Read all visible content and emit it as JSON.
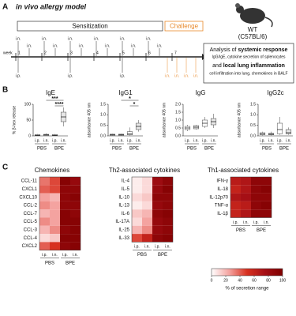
{
  "panel_a": {
    "label": "A",
    "title": "in vivo allergy model",
    "sensitization": "Sensitization",
    "challenge": "Challenge",
    "week_label": "week",
    "weeks": [
      "1",
      "2",
      "3",
      "4",
      "5",
      "6",
      "7"
    ],
    "in_label": "i.n.",
    "ip_label": "i.p.",
    "mouse": "WT",
    "strain": "(C57BL/6)",
    "analysis": [
      "Analysis of ",
      "systemic response",
      "IgG/IgE, cytokine secretion of splenocytes",
      "and ",
      "local lung inflammation",
      "cell infiltration into lung, chemokines in BALF"
    ]
  },
  "panel_b_label": "B",
  "panel_c_label": "C",
  "chart_data": [
    {
      "type": "box",
      "title": "IgE",
      "ylabel": "% β-hex release",
      "categories": [
        "i.p.",
        "i.n.",
        "i.p.",
        "i.n."
      ],
      "groups": [
        "PBS",
        "BPE"
      ],
      "ylim": [
        0,
        100
      ],
      "yticks": [
        0,
        50,
        100
      ],
      "min": [
        0,
        0,
        0,
        30
      ],
      "q1": [
        1,
        1,
        1,
        45
      ],
      "median": [
        2,
        3,
        2,
        60
      ],
      "q3": [
        4,
        5,
        4,
        75
      ],
      "max": [
        6,
        8,
        6,
        90
      ],
      "annotations": [
        {
          "text": "***",
          "from": 1,
          "to": 3
        },
        {
          "text": "****",
          "from": 2,
          "to": 3
        }
      ]
    },
    {
      "type": "box",
      "title": "IgG1",
      "ylabel": "absorbance 405 nm",
      "categories": [
        "i.p.",
        "i.n.",
        "i.p.",
        "i.n."
      ],
      "groups": [
        "PBS",
        "BPE"
      ],
      "ylim": [
        0,
        1.5
      ],
      "yticks": [
        {
          "value": 0,
          "label": "0.0"
        },
        {
          "value": 0.5,
          "label": "0.5"
        },
        {
          "value": 1,
          "label": "1.0"
        },
        {
          "value": 1.5,
          "label": "1.5"
        }
      ],
      "min": [
        0,
        0,
        0.02,
        0.2
      ],
      "q1": [
        0.02,
        0.02,
        0.05,
        0.3
      ],
      "median": [
        0.05,
        0.05,
        0.1,
        0.45
      ],
      "q3": [
        0.08,
        0.08,
        0.2,
        0.6
      ],
      "max": [
        0.1,
        0.1,
        0.4,
        0.75
      ],
      "annotations": [
        {
          "text": "*",
          "from": 1,
          "to": 3
        },
        {
          "text": "*",
          "from": 2,
          "to": 3
        }
      ]
    },
    {
      "type": "box",
      "title": "IgG",
      "ylabel": "absorbance 405 nm",
      "categories": [
        "i.p.",
        "i.n.",
        "i.p.",
        "i.n."
      ],
      "groups": [
        "PBS",
        "BPE"
      ],
      "ylim": [
        0,
        2
      ],
      "yticks": [
        {
          "value": 0,
          "label": "0.0"
        },
        {
          "value": 0.5,
          "label": "0.5"
        },
        {
          "value": 1,
          "label": "1.0"
        },
        {
          "value": 1.5,
          "label": "1.5"
        },
        {
          "value": 2,
          "label": "2.0"
        }
      ],
      "min": [
        0.3,
        0.4,
        0.5,
        0.5
      ],
      "q1": [
        0.4,
        0.45,
        0.6,
        0.7
      ],
      "median": [
        0.5,
        0.55,
        0.8,
        0.9
      ],
      "q3": [
        0.6,
        0.65,
        1,
        1.1
      ],
      "max": [
        0.7,
        0.7,
        1.2,
        1.4
      ],
      "annotations": []
    },
    {
      "type": "box",
      "title": "IgG2c",
      "ylabel": "absorbance 405 nm",
      "categories": [
        "i.p.",
        "i.n.",
        "i.p.",
        "i.n."
      ],
      "groups": [
        "PBS",
        "BPE"
      ],
      "ylim": [
        0,
        1.5
      ],
      "yticks": [
        {
          "value": 0,
          "label": "0.0"
        },
        {
          "value": 0.5,
          "label": "0.5"
        },
        {
          "value": 1,
          "label": "1.0"
        },
        {
          "value": 1.5,
          "label": "1.5"
        }
      ],
      "min": [
        0.02,
        0.02,
        0.05,
        0.05
      ],
      "q1": [
        0.05,
        0.05,
        0.1,
        0.1
      ],
      "median": [
        0.1,
        0.08,
        0.3,
        0.15
      ],
      "q3": [
        0.15,
        0.12,
        0.6,
        0.3
      ],
      "max": [
        0.2,
        0.2,
        0.9,
        0.4
      ],
      "annotations": []
    },
    {
      "type": "heatmap",
      "title": "Chemokines",
      "rows": [
        "CCL-11",
        "CXCL1",
        "CXCL10",
        "CCL-2",
        "CCL-7",
        "CCL-5",
        "CCL-3",
        "CCL-4",
        "CXCL2"
      ],
      "categories": [
        "i.p.",
        "i.n.",
        "i.p.",
        "i.n."
      ],
      "groups": [
        "PBS",
        "BPE"
      ],
      "values": [
        [
          35,
          45,
          95,
          85
        ],
        [
          40,
          45,
          90,
          90
        ],
        [
          25,
          20,
          90,
          95
        ],
        [
          30,
          25,
          90,
          90
        ],
        [
          20,
          25,
          95,
          90
        ],
        [
          30,
          25,
          95,
          95
        ],
        [
          20,
          30,
          90,
          95
        ],
        [
          10,
          15,
          95,
          95
        ],
        [
          40,
          50,
          90,
          95
        ]
      ]
    },
    {
      "type": "heatmap",
      "title": "Th2-associated cytokines",
      "rows": [
        "IL-4",
        "IL-5",
        "IL-10",
        "IL-13",
        "IL-6",
        "IL-17A",
        "IL-25",
        "IL-33"
      ],
      "categories": [
        "i.p.",
        "i.n.",
        "i.p.",
        "i.n."
      ],
      "groups": [
        "PBS",
        "BPE"
      ],
      "values": [
        [
          5,
          10,
          80,
          90
        ],
        [
          5,
          10,
          85,
          95
        ],
        [
          10,
          15,
          90,
          90
        ],
        [
          5,
          10,
          85,
          90
        ],
        [
          15,
          20,
          90,
          95
        ],
        [
          10,
          25,
          85,
          90
        ],
        [
          20,
          30,
          85,
          90
        ],
        [
          45,
          60,
          90,
          95
        ]
      ]
    },
    {
      "type": "heatmap",
      "title": "Th1-associated cytokines",
      "rows": [
        "IFN-γ",
        "IL-18",
        "IL-12p70",
        "TNF-α",
        "IL-1β"
      ],
      "categories": [
        "i.p.",
        "i.n.",
        "i.p.",
        "i.n."
      ],
      "groups": [
        "PBS",
        "BPE"
      ],
      "values": [
        [
          65,
          70,
          90,
          90
        ],
        [
          60,
          70,
          90,
          95
        ],
        [
          70,
          75,
          90,
          90
        ],
        [
          60,
          65,
          90,
          95
        ],
        [
          60,
          70,
          90,
          90
        ]
      ],
      "colorbar": {
        "label": "% of secretion range",
        "lim": [
          0,
          100
        ],
        "ticks": [
          0,
          20,
          40,
          60,
          80,
          100
        ],
        "colors": [
          "#ffffff",
          "#f4a3a0",
          "#d7301f",
          "#a50f15",
          "#7f0000"
        ]
      }
    }
  ]
}
